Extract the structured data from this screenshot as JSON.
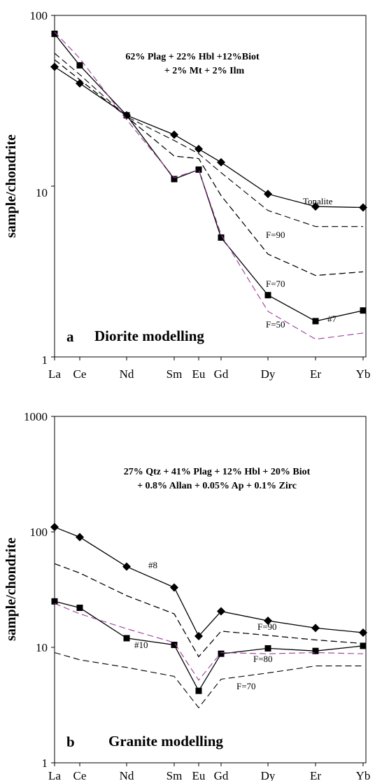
{
  "chart_data": [
    {
      "type": "line",
      "panel_letter": "a",
      "title": "Diorite modelling",
      "annotation_lines": [
        "62% Plag + 22% Hbl +12%Biot",
        "+ 2% Mt + 2% Ilm"
      ],
      "ylabel": "sample/chondrite",
      "yscale": "log",
      "ylim": [
        1,
        100
      ],
      "ytick_labels": [
        "1",
        "10",
        "100"
      ],
      "categories": [
        "La",
        "Ce",
        "Nd",
        "Sm",
        "Eu",
        "Gd",
        "Dy",
        "Er",
        "Yb"
      ],
      "grid": false,
      "series": [
        {
          "name": "Tonalite",
          "style": "solid",
          "marker": "diamond",
          "color": "#000000",
          "values": [
            50,
            40,
            26,
            20,
            16.5,
            13.8,
            9,
            7.6,
            7.5
          ]
        },
        {
          "name": "#7",
          "style": "solid",
          "marker": "square",
          "color": "#000000",
          "values": [
            78,
            51,
            26,
            11,
            12.5,
            5,
            2.3,
            1.62,
            1.87
          ]
        },
        {
          "name": "",
          "style": "dashed",
          "marker": "none",
          "color": "#000000",
          "values": [
            60,
            45,
            25.5,
            18.5,
            15.5,
            12,
            7.2,
            5.8,
            5.8
          ]
        },
        {
          "name": "F=90",
          "style": "dashed",
          "marker": "none",
          "color": "#000000",
          "values": [
            55,
            42,
            25.5,
            15,
            14.5,
            8.8,
            4,
            3,
            3.15
          ]
        },
        {
          "name": "F=70",
          "style": "dashed",
          "marker": "none",
          "color": "#000000",
          "values": [
            55,
            42,
            25.5,
            15,
            14.5,
            8.8,
            4,
            3,
            3.15
          ]
        },
        {
          "name": "F=50",
          "style": "dashed",
          "marker": "none",
          "color": "#9a3a9a",
          "values": [
            80,
            56,
            24.5,
            11.2,
            12.5,
            5.2,
            1.85,
            1.27,
            1.38
          ]
        }
      ],
      "labels": {
        "tonalite": "Tonalite",
        "f90": "F=90",
        "f70": "F=70",
        "f50": "F=50",
        "s7": "#7"
      }
    },
    {
      "type": "line",
      "panel_letter": "b",
      "title": "Granite modelling",
      "annotation_lines": [
        "27% Qtz + 41% Plag + 12% Hbl + 20% Biot",
        "+ 0.8% Allan + 0.05% Ap + 0.1% Zirc"
      ],
      "ylabel": "sample/chondrite",
      "yscale": "log",
      "ylim": [
        1,
        1000
      ],
      "ytick_labels": [
        "1",
        "10",
        "100",
        "1000"
      ],
      "categories": [
        "La",
        "Ce",
        "Nd",
        "Sm",
        "Eu",
        "Gd",
        "Dy",
        "Er",
        "Yb"
      ],
      "grid": false,
      "series": [
        {
          "name": "#8",
          "style": "solid",
          "marker": "diamond",
          "color": "#000000",
          "values": [
            110,
            90,
            50,
            33,
            12.5,
            20.5,
            17,
            14.7,
            13.4
          ]
        },
        {
          "name": "#10",
          "style": "solid",
          "marker": "square",
          "color": "#000000",
          "values": [
            25,
            22,
            12,
            10.5,
            4.2,
            8.8,
            9.8,
            9.3,
            10.3
          ]
        },
        {
          "name": "",
          "style": "dashed",
          "marker": "none",
          "color": "#000000",
          "values": [
            53,
            44,
            28,
            19.5,
            8.3,
            13.8,
            12.7,
            11.6,
            10.8
          ]
        },
        {
          "name": "F=90",
          "style": "dashed",
          "marker": "none",
          "color": "#000000",
          "values": [
            53,
            44,
            28,
            19.5,
            8.3,
            13.8,
            12.7,
            11.6,
            10.8
          ]
        },
        {
          "name": "F=80",
          "style": "dashed",
          "marker": "none",
          "color": "#9a3a9a",
          "values": [
            24,
            19.5,
            14.5,
            11,
            5.2,
            9,
            8.8,
            9,
            8.8
          ]
        },
        {
          "name": "F=70",
          "style": "dashed",
          "marker": "none",
          "color": "#000000",
          "values": [
            9,
            7.8,
            6.7,
            5.6,
            3,
            5.3,
            6,
            6.9,
            6.9
          ]
        }
      ],
      "labels": {
        "f90": "F=90",
        "f80": "F=80",
        "f70": "F=70",
        "s8": "#8",
        "s10": "#10"
      }
    }
  ]
}
